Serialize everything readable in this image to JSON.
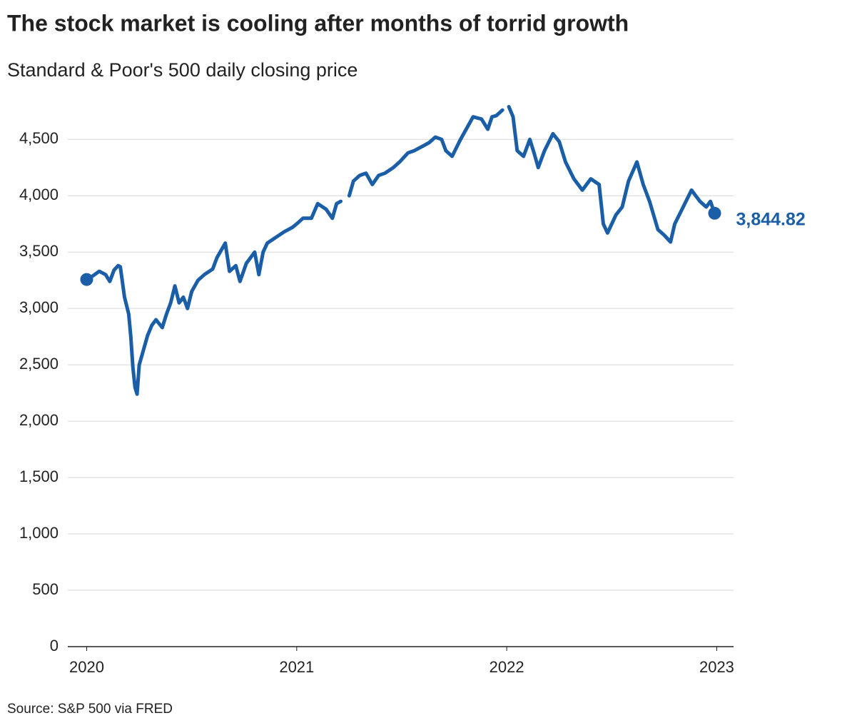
{
  "chart_data": {
    "type": "line",
    "title": "The stock market is cooling after months of torrid growth",
    "subtitle": "Standard & Poor's 500 daily closing price",
    "source": "Source: S&P 500 via FRED",
    "series": [
      {
        "name": "S&P 500",
        "color": "#1b5ea8",
        "x": [
          2020.0,
          2020.03,
          2020.06,
          2020.09,
          2020.11,
          2020.13,
          2020.15,
          2020.16,
          2020.18,
          2020.2,
          2020.21,
          2020.22,
          2020.23,
          2020.24,
          2020.25,
          2020.27,
          2020.29,
          2020.31,
          2020.33,
          2020.36,
          2020.38,
          2020.4,
          2020.42,
          2020.44,
          2020.46,
          2020.48,
          2020.5,
          2020.53,
          2020.56,
          2020.6,
          2020.62,
          2020.66,
          2020.68,
          2020.71,
          2020.73,
          2020.76,
          2020.8,
          2020.82,
          2020.84,
          2020.86,
          2020.9,
          2020.94,
          2020.98,
          2021.0,
          2021.03,
          2021.07,
          2021.1,
          2021.14,
          2021.17,
          2021.19,
          2021.21,
          2021.23,
          2021.25,
          2021.27,
          2021.3,
          2021.33,
          2021.36,
          2021.39,
          2021.42,
          2021.46,
          2021.49,
          2021.53,
          2021.56,
          2021.6,
          2021.63,
          2021.66,
          2021.69,
          2021.71,
          2021.74,
          2021.78,
          2021.81,
          2021.84,
          2021.88,
          2021.91,
          2021.93,
          2021.95,
          2021.98,
          2022.0,
          2022.01,
          2022.03,
          2022.05,
          2022.08,
          2022.11,
          2022.13,
          2022.15,
          2022.18,
          2022.22,
          2022.25,
          2022.28,
          2022.32,
          2022.36,
          2022.4,
          2022.44,
          2022.46,
          2022.48,
          2022.52,
          2022.55,
          2022.58,
          2022.62,
          2022.65,
          2022.68,
          2022.72,
          2022.75,
          2022.78,
          2022.8,
          2022.84,
          2022.88,
          2022.92,
          2022.95,
          2022.97,
          2022.99
        ],
        "values": [
          3257,
          3290,
          3330,
          3300,
          3240,
          3340,
          3380,
          3370,
          3100,
          2950,
          2750,
          2480,
          2300,
          2240,
          2500,
          2630,
          2760,
          2850,
          2900,
          2830,
          2950,
          3050,
          3200,
          3050,
          3100,
          3000,
          3150,
          3250,
          3300,
          3350,
          3450,
          3580,
          3330,
          3380,
          3240,
          3400,
          3500,
          3300,
          3500,
          3580,
          3630,
          3680,
          3720,
          3750,
          3800,
          3800,
          3930,
          3880,
          3800,
          3930,
          3950,
          null,
          4000,
          4130,
          4180,
          4200,
          4100,
          4180,
          4200,
          4250,
          4300,
          4380,
          4400,
          4440,
          4470,
          4520,
          4500,
          4400,
          4350,
          4500,
          4600,
          4700,
          4680,
          4590,
          4700,
          4710,
          4760,
          null,
          4790,
          4700,
          4400,
          4350,
          4500,
          4380,
          4250,
          4400,
          4550,
          4480,
          4300,
          4150,
          4050,
          4150,
          4100,
          3750,
          3670,
          3830,
          3900,
          4130,
          4300,
          4100,
          3950,
          3700,
          3650,
          3590,
          3750,
          3900,
          4050,
          3950,
          3900,
          3950,
          3844.82
        ]
      }
    ],
    "end_label": {
      "value": 3844.82,
      "label": "3,844.82"
    },
    "xlim": [
      2019.91,
      2023.08
    ],
    "xticks": [
      2020,
      2021,
      2022,
      2023
    ],
    "ylim": [
      0,
      4850
    ],
    "yticks": [
      0,
      500,
      {
        "value": 1000,
        "label": "1,000"
      },
      {
        "value": 1500,
        "label": "1,500"
      },
      {
        "value": 2000,
        "label": "2,000"
      },
      {
        "value": 2500,
        "label": "2,500"
      },
      {
        "value": 3000,
        "label": "3,000"
      },
      {
        "value": 3500,
        "label": "3,500"
      },
      {
        "value": 4000,
        "label": "4,000"
      },
      {
        "value": 4500,
        "label": "4,500"
      }
    ],
    "grid": true
  }
}
